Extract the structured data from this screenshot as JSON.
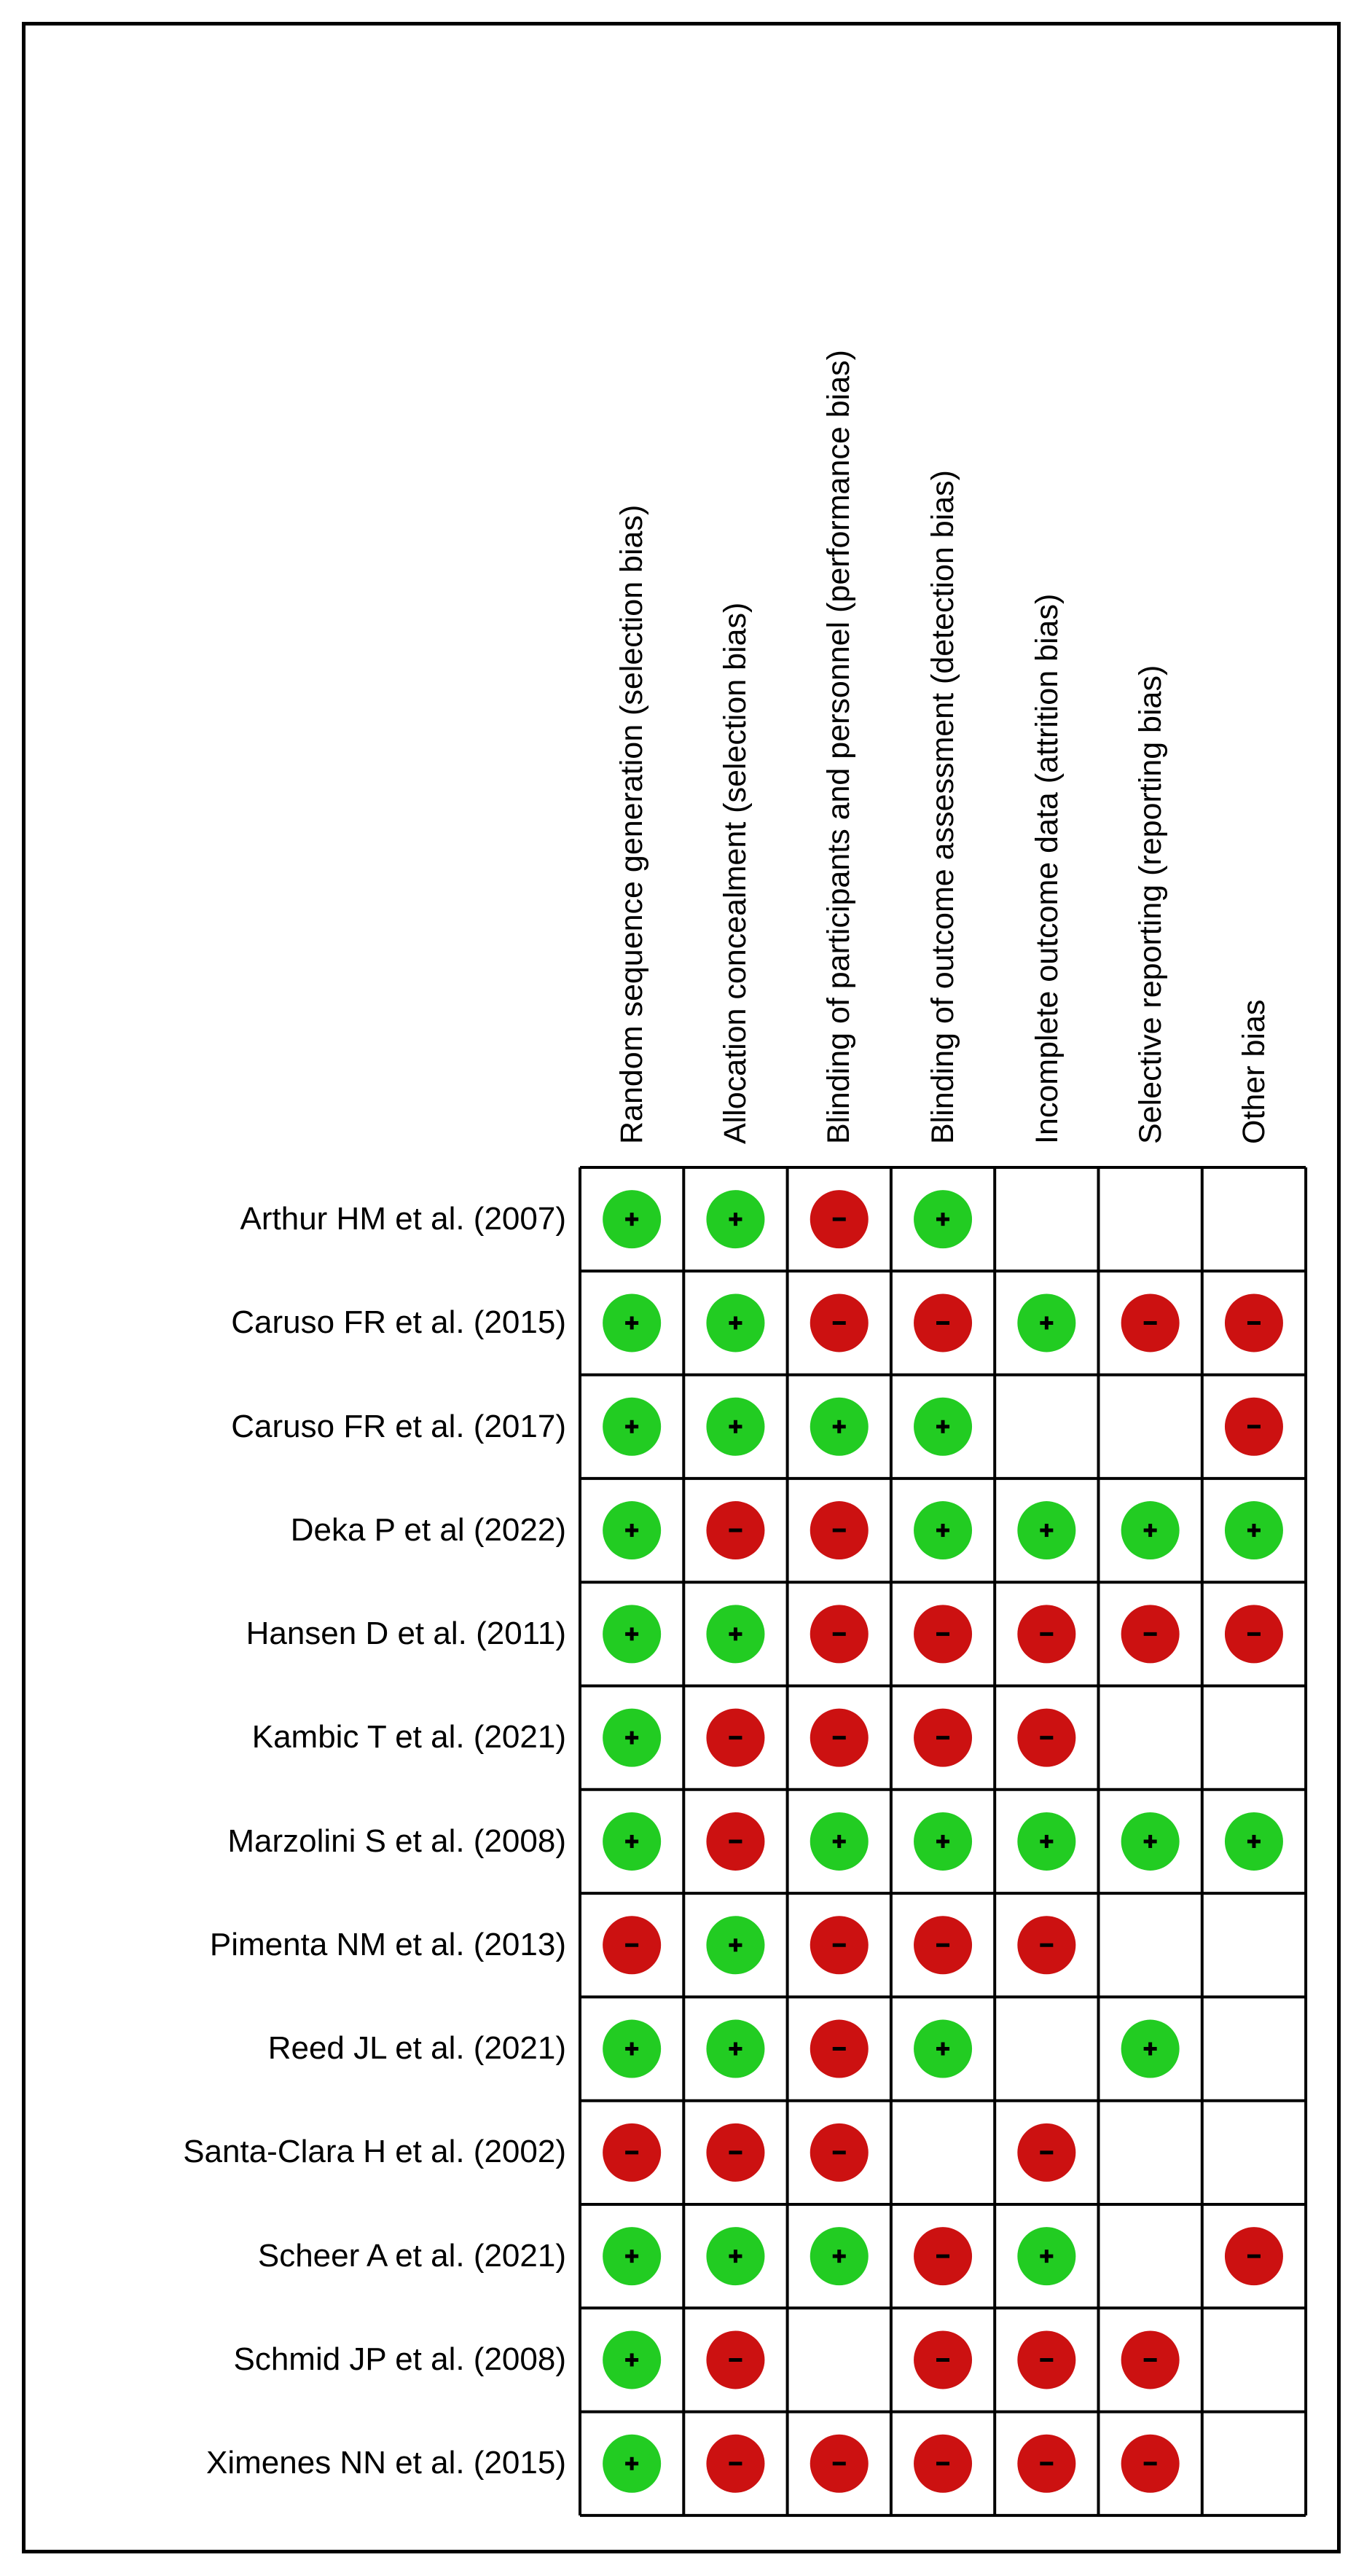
{
  "chart_data": {
    "type": "table",
    "columns": [
      "Random sequence generation (selection bias)",
      "Allocation concealment (selection bias)",
      "Blinding of participants and personnel (performance bias)",
      "Blinding of outcome assessment (detection bias)",
      "Incomplete outcome data (attrition bias)",
      "Selective reporting (reporting bias)",
      "Other bias"
    ],
    "rows": [
      {
        "study": "Arthur HM et al. (2007)",
        "ratings": [
          "+",
          "+",
          "-",
          "+",
          "",
          "",
          ""
        ]
      },
      {
        "study": "Caruso FR et al. (2015)",
        "ratings": [
          "+",
          "+",
          "-",
          "-",
          "+",
          "-",
          "-"
        ]
      },
      {
        "study": "Caruso FR et al. (2017)",
        "ratings": [
          "+",
          "+",
          "+",
          "+",
          "",
          "",
          "-"
        ]
      },
      {
        "study": "Deka P et al (2022)",
        "ratings": [
          "+",
          "-",
          "-",
          "+",
          "+",
          "+",
          "+"
        ]
      },
      {
        "study": "Hansen D et al. (2011)",
        "ratings": [
          "+",
          "+",
          "-",
          "-",
          "-",
          "-",
          "-"
        ]
      },
      {
        "study": "Kambic T et al. (2021)",
        "ratings": [
          "+",
          "-",
          "-",
          "-",
          "-",
          "",
          ""
        ]
      },
      {
        "study": "Marzolini S et al. (2008)",
        "ratings": [
          "+",
          "-",
          "+",
          "+",
          "+",
          "+",
          "+"
        ]
      },
      {
        "study": "Pimenta NM et al. (2013)",
        "ratings": [
          "-",
          "+",
          "-",
          "-",
          "-",
          "",
          ""
        ]
      },
      {
        "study": "Reed JL et al. (2021)",
        "ratings": [
          "+",
          "+",
          "-",
          "+",
          "",
          "+",
          ""
        ]
      },
      {
        "study": "Santa-Clara H et al. (2002)",
        "ratings": [
          "-",
          "-",
          "-",
          "",
          "-",
          "",
          ""
        ]
      },
      {
        "study": "Scheer A et al. (2021)",
        "ratings": [
          "+",
          "+",
          "+",
          "-",
          "+",
          "",
          "-"
        ]
      },
      {
        "study": "Schmid JP et al. (2008)",
        "ratings": [
          "+",
          "-",
          "",
          "-",
          "-",
          "-",
          ""
        ]
      },
      {
        "study": "Ximenes NN et al. (2015)",
        "ratings": [
          "+",
          "-",
          "-",
          "-",
          "-",
          "-",
          ""
        ]
      }
    ],
    "colors": {
      "low_risk": "#22cc22",
      "high_risk": "#cc1111",
      "symbol": "#000000",
      "grid": "#000000"
    },
    "legend": "none"
  }
}
